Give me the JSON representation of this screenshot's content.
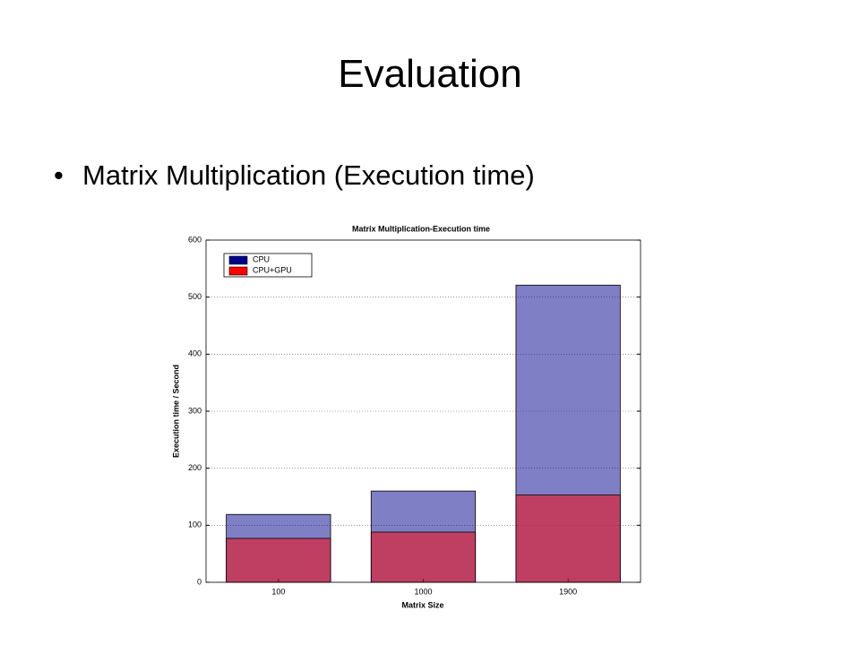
{
  "slide": {
    "title": "Evaluation",
    "bullet": "Matrix Multiplication (Execution time)"
  },
  "chart_data": {
    "type": "bar",
    "barmode": "overlay",
    "title": "Matrix Multiplication-Execution time",
    "x_label": "Matrix Size",
    "y_label": "Execution time / Second",
    "categories": [
      "100",
      "1000",
      "1900"
    ],
    "series": [
      {
        "name": "CPU",
        "color": "#00008b",
        "values": [
          119,
          160,
          521
        ]
      },
      {
        "name": "CPU+GPU",
        "color": "#ff0000",
        "values": [
          77,
          88,
          153
        ]
      }
    ],
    "ylim": [
      0,
      600
    ],
    "yticks": [
      0,
      100,
      200,
      300,
      400,
      500,
      600
    ],
    "grid": true,
    "legend": "upper left"
  }
}
